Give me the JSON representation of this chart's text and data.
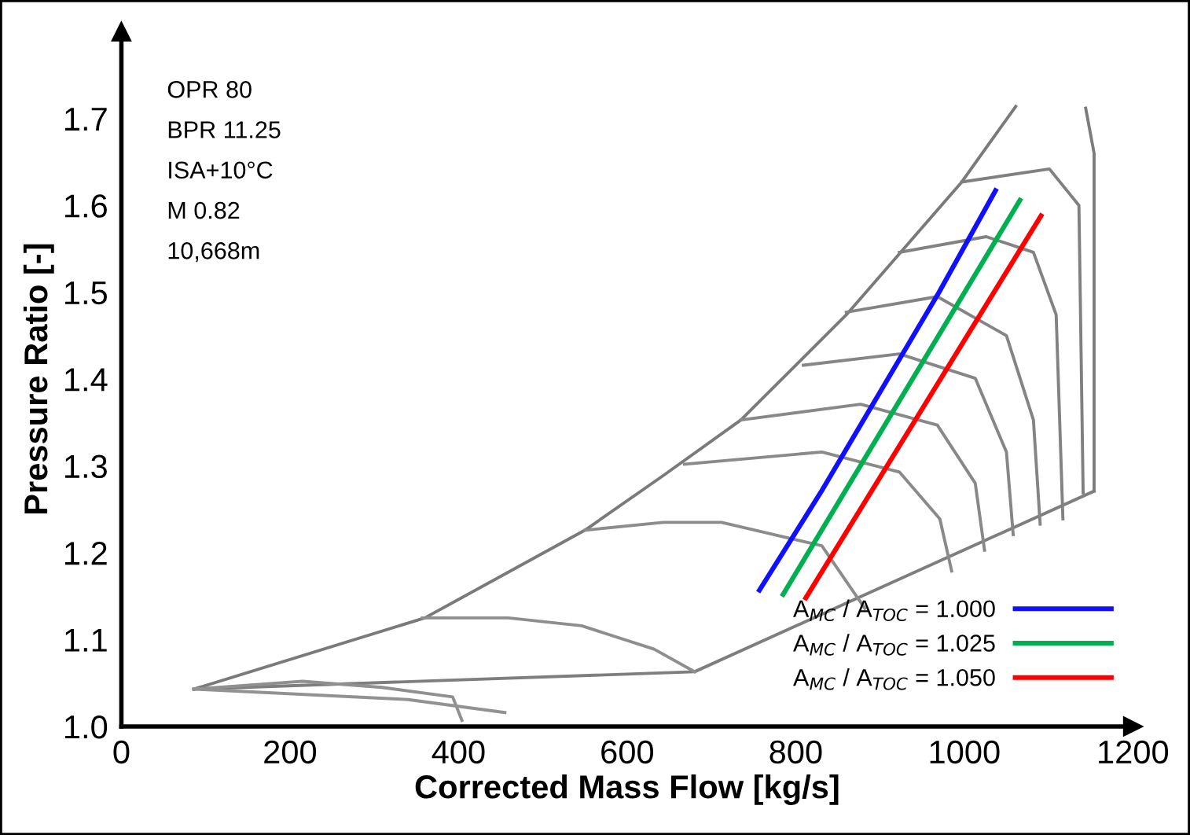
{
  "chart_data": {
    "type": "line",
    "xlabel": "Corrected Mass Flow [kg/s]",
    "ylabel": "Pressure Ratio [-]",
    "xlim": [
      0,
      1200
    ],
    "ylim": [
      1.0,
      1.8
    ],
    "xticks": [
      0,
      200,
      400,
      600,
      800,
      1000,
      1200
    ],
    "yticks": [
      {
        "value": 1.0,
        "label": "1.0"
      },
      1.1,
      1.2,
      1.3,
      1.4,
      1.5,
      1.6,
      1.7
    ],
    "grid": false,
    "legend": "bottom right",
    "line_style": "solid",
    "marker": "none",
    "annotations": [
      "OPR 80",
      "BPR 11.25",
      "ISA+10°C",
      "M 0.82",
      "10,668m"
    ],
    "series": [
      {
        "color": "#7a7a7a",
        "x": [
          86,
          360,
          550,
          643,
          735,
          860,
          997,
          1061
        ],
        "values": [
          1.043,
          1.125,
          1.226,
          1.289,
          1.353,
          1.474,
          1.627,
          1.714
        ]
      },
      {
        "color": "#7c7c7c",
        "x": [
          1144,
          1154,
          1154
        ],
        "values": [
          1.712,
          1.66,
          1.271
        ]
      },
      {
        "color": "#7e7e7e",
        "x": [
          1154,
          680,
          86
        ],
        "values": [
          1.271,
          1.063,
          1.043
        ]
      },
      {
        "color": "#808080",
        "x": [
          997,
          1101,
          1136,
          1141
        ],
        "values": [
          1.627,
          1.642,
          1.6,
          1.269
        ]
      },
      {
        "color": "#828282",
        "x": [
          923,
          1026,
          1082,
          1109,
          1117
        ],
        "values": [
          1.546,
          1.564,
          1.546,
          1.474,
          1.239
        ]
      },
      {
        "color": "#848484",
        "x": [
          860,
          968,
          1050,
          1082,
          1090
        ],
        "values": [
          1.477,
          1.495,
          1.45,
          1.353,
          1.233
        ]
      },
      {
        "color": "#868686",
        "x": [
          809,
          923,
          1013,
          1050,
          1058
        ],
        "values": [
          1.416,
          1.429,
          1.401,
          1.316,
          1.221
        ]
      },
      {
        "color": "#888888",
        "x": [
          735,
          877,
          968,
          1013,
          1024
        ],
        "values": [
          1.353,
          1.371,
          1.347,
          1.28,
          1.203
        ]
      },
      {
        "color": "#8a8a8a",
        "x": [
          668,
          831,
          923,
          971,
          985
        ],
        "values": [
          1.302,
          1.316,
          1.293,
          1.239,
          1.179
        ]
      },
      {
        "color": "#8c8c8c",
        "x": [
          550,
          643,
          712,
          831,
          882
        ],
        "values": [
          1.226,
          1.235,
          1.235,
          1.208,
          1.136
        ]
      },
      {
        "color": "#8e8e8e",
        "x": [
          357,
          459,
          546,
          632,
          680
        ],
        "values": [
          1.125,
          1.125,
          1.116,
          1.089,
          1.063
        ]
      },
      {
        "color": "#909090",
        "x": [
          86,
          215,
          309,
          393,
          404
        ],
        "values": [
          1.043,
          1.052,
          1.045,
          1.034,
          1.007
        ]
      },
      {
        "color": "#929292",
        "x": [
          86,
          340,
          455
        ],
        "values": [
          1.043,
          1.031,
          1.016
        ]
      },
      {
        "name": "A$_{MC}$ / A$_{TOC}$ = 1.000",
        "color": "#1010ff",
        "x": [
          757,
          830,
          900,
          970,
          1037
        ],
        "values": [
          1.157,
          1.27,
          1.385,
          1.5,
          1.617
        ]
      },
      {
        "name": "A$_{MC}$ / A$_{TOC}$ = 1.025",
        "color": "#00b050",
        "x": [
          785,
          1066
        ],
        "values": [
          1.152,
          1.606
        ]
      },
      {
        "name": "A$_{MC}$ / A$_{TOC}$ = 1.050",
        "color": "#ff0000",
        "x": [
          812,
          1091
        ],
        "values": [
          1.148,
          1.588
        ]
      }
    ]
  }
}
